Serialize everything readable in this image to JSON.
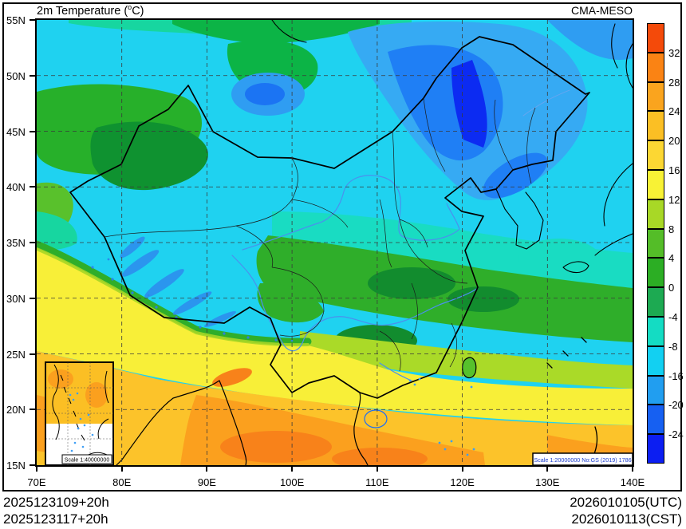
{
  "header": {
    "title_pre": "2m Temperature (",
    "title_degree": "o",
    "title_post": "C)",
    "brand": "CMA-MESO"
  },
  "axes": {
    "lat_labels": [
      "55N",
      "50N",
      "45N",
      "40N",
      "35N",
      "30N",
      "25N",
      "20N",
      "15N"
    ],
    "lon_labels": [
      "70E",
      "80E",
      "90E",
      "100E",
      "110E",
      "120E",
      "130E",
      "140E"
    ]
  },
  "colorbar": {
    "tick_labels": [
      "32",
      "28",
      "24",
      "20",
      "16",
      "12",
      "8",
      "4",
      "0",
      "-4",
      "-8",
      "-16",
      "-20",
      "-24"
    ],
    "colors": [
      "#f44a0a",
      "#fa8314",
      "#faa41e",
      "#fbbf24",
      "#fcd733",
      "#f8f235",
      "#a8d826",
      "#54bd28",
      "#2cae24",
      "#1daa52",
      "#14dcc3",
      "#12d0f2",
      "#219ef0",
      "#1660f2",
      "#0c1ef2"
    ]
  },
  "map": {
    "inset_scale_label": "Scale 1:40000000",
    "scale_label": "Scale 1:20000000 No:GS (2019) 1786"
  },
  "footer": {
    "left_lines": [
      "2025123109+20h",
      "2025123117+20h"
    ],
    "right_lines": [
      "2026010105(UTC)",
      "2026010113(CST)"
    ]
  },
  "chart_data": {
    "type": "heatmap",
    "title": "2m Temperature (°C)",
    "source_label": "CMA-MESO",
    "x_axis": {
      "label": "longitude",
      "ticks": [
        "70E",
        "80E",
        "90E",
        "100E",
        "110E",
        "120E",
        "130E",
        "140E"
      ]
    },
    "y_axis": {
      "label": "latitude",
      "ticks": [
        "55N",
        "50N",
        "45N",
        "40N",
        "35N",
        "30N",
        "25N",
        "20N",
        "15N"
      ]
    },
    "colorbar_levels_c": [
      32,
      28,
      24,
      20,
      16,
      12,
      8,
      4,
      0,
      -4,
      -8,
      -16,
      -20,
      -24
    ],
    "legend_position": "right",
    "grid": "dashed 10-degree lon / 5-degree lat",
    "init_time_labels": [
      "2025123109+20h",
      "2025123117+20h"
    ],
    "valid_time_labels": [
      "2026010105(UTC)",
      "2026010113(CST)"
    ],
    "field_summary": "Cold (cyan/blue, -8 to below -24C) over north China and the northeast; green 0-8C over central-east China and Tarim basin; warm (yellow to orange, 12-28C) over south China, Indochina and India"
  }
}
